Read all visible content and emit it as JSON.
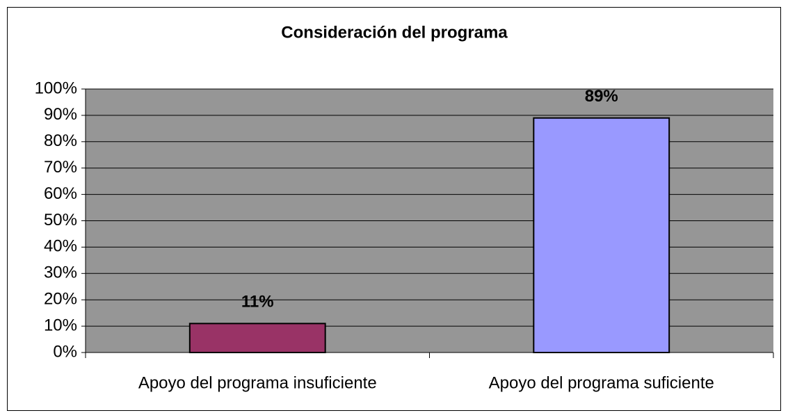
{
  "chart_data": {
    "type": "bar",
    "title": "Consideración del programa",
    "categories": [
      "Apoyo del programa insuficiente",
      "Apoyo del programa suficiente"
    ],
    "values": [
      11,
      89
    ],
    "value_labels": [
      "11%",
      "89%"
    ],
    "colors": [
      "#993366",
      "#9999ff"
    ],
    "ylim": [
      0,
      100
    ],
    "yticks": [
      {
        "value": 0,
        "label": "0%"
      },
      {
        "value": 10,
        "label": "10%"
      },
      {
        "value": 20,
        "label": "20%"
      },
      {
        "value": 30,
        "label": "30%"
      },
      {
        "value": 40,
        "label": "40%"
      },
      {
        "value": 50,
        "label": "50%"
      },
      {
        "value": 60,
        "label": "60%"
      },
      {
        "value": 70,
        "label": "70%"
      },
      {
        "value": 80,
        "label": "80%"
      },
      {
        "value": 90,
        "label": "90%"
      },
      {
        "value": 100,
        "label": "100%"
      }
    ],
    "grid": true
  }
}
